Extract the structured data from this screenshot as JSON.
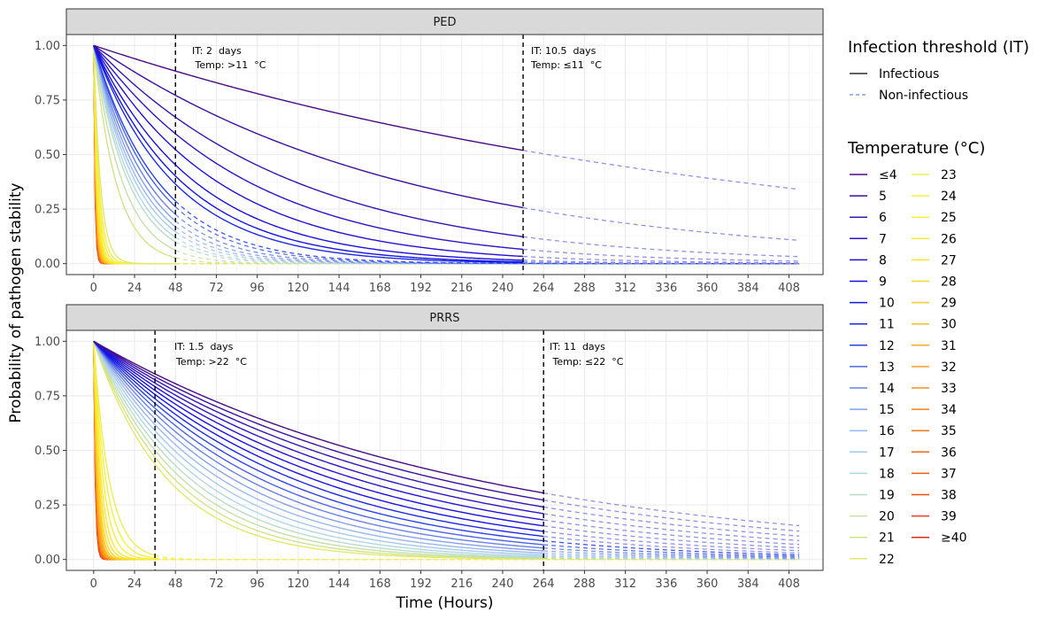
{
  "chart_data": {
    "type": "line",
    "ylabel": "Probability of pathogen stability",
    "xlabel": "Time (Hours)",
    "xlim": [
      -16,
      428
    ],
    "ylim": [
      -0.05,
      1.05
    ],
    "x_ticks": [
      0,
      24,
      48,
      72,
      96,
      120,
      144,
      168,
      192,
      216,
      240,
      264,
      288,
      312,
      336,
      360,
      384,
      408
    ],
    "y_ticks": [
      0.0,
      0.25,
      0.5,
      0.75,
      1.0
    ],
    "y_tick_labels": [
      "0.00",
      "0.25",
      "0.50",
      "0.75",
      "1.00"
    ],
    "x_max": 414,
    "grid": true,
    "panels": [
      {
        "name": "PED",
        "threshold_lines": [
          {
            "x": 48,
            "text1": "IT: 2  days",
            "text2": " Temp: >11  °C"
          },
          {
            "x": 252,
            "text1": "IT: 10.5  days",
            "text2": "Temp: ≤11  °C"
          }
        ],
        "switch": {
          "threshold_temp": 11,
          "low_x": 252,
          "high_x": 48
        },
        "value_at_switch_low": [
          {
            "temp": "≤4",
            "value": 0.52
          },
          {
            "temp": "5",
            "value": 0.26
          },
          {
            "temp": "6",
            "value": 0.13
          },
          {
            "temp": "7",
            "value": 0.07
          },
          {
            "temp": "8",
            "value": 0.04
          },
          {
            "temp": "9",
            "value": 0.03
          },
          {
            "temp": "10",
            "value": 0.02
          },
          {
            "temp": "11",
            "value": 0.01
          }
        ],
        "value_at_48h_high": [
          {
            "temp": "12",
            "value": 0.29
          },
          {
            "temp": "13",
            "value": 0.26
          },
          {
            "temp": "14",
            "value": 0.23
          },
          {
            "temp": "15",
            "value": 0.2
          },
          {
            "temp": "16",
            "value": 0.17
          },
          {
            "temp": "17",
            "value": 0.15
          },
          {
            "temp": "18",
            "value": 0.12
          },
          {
            "temp": "19",
            "value": 0.1
          },
          {
            "temp": "20",
            "value": 0.06
          },
          {
            "temp": "21",
            "value": 0.03
          },
          {
            "temp": "≥22",
            "value": 0.0
          }
        ]
      },
      {
        "name": "PRRS",
        "threshold_lines": [
          {
            "x": 36,
            "text1": "IT: 1.5  days",
            "text2": "Temp: >22  °C"
          },
          {
            "x": 264,
            "text1": "IT: 11  days",
            "text2": " Temp: ≤22  °C"
          }
        ],
        "switch": {
          "threshold_temp": 22,
          "low_x": 264,
          "high_x": 36
        },
        "value_at_switch_low": [
          {
            "temp": "≤4",
            "value": 0.31
          },
          {
            "temp": "12",
            "value": 0.06
          },
          {
            "temp": "22",
            "value": 0.0
          }
        ],
        "value_at_36h_high": [
          {
            "temp": "23",
            "value": 0.02
          },
          {
            "temp": "≥40",
            "value": 0.0
          }
        ]
      }
    ]
  },
  "legend": {
    "it_title": "Infection threshold (IT)",
    "it_items": [
      {
        "label": "Infectious",
        "dash": "solid"
      },
      {
        "label": "Non-infectious",
        "dash": "dashed"
      }
    ],
    "temp_title": "Temperature (°C)",
    "temp_items": [
      {
        "label": "≤4",
        "color": "#4b0a85"
      },
      {
        "label": "5",
        "color": "#3d0fa0"
      },
      {
        "label": "6",
        "color": "#3415b5"
      },
      {
        "label": "7",
        "color": "#2a16c8"
      },
      {
        "label": "8",
        "color": "#2112d8"
      },
      {
        "label": "9",
        "color": "#1a10e0"
      },
      {
        "label": "10",
        "color": "#1414e6"
      },
      {
        "label": "11",
        "color": "#1c2ae6"
      },
      {
        "label": "12",
        "color": "#2a44e8"
      },
      {
        "label": "13",
        "color": "#4a64e6"
      },
      {
        "label": "14",
        "color": "#6a82e6"
      },
      {
        "label": "15",
        "color": "#86a0ea"
      },
      {
        "label": "16",
        "color": "#9ab8ee"
      },
      {
        "label": "17",
        "color": "#a9c8ee"
      },
      {
        "label": "18",
        "color": "#b3d6e6"
      },
      {
        "label": "19",
        "color": "#b8dcc8"
      },
      {
        "label": "20",
        "color": "#c4e0a8"
      },
      {
        "label": "21",
        "color": "#d2e48a"
      },
      {
        "label": "22",
        "color": "#e2e86a"
      },
      {
        "label": "23",
        "color": "#eeee50"
      },
      {
        "label": "24",
        "color": "#f4f040"
      },
      {
        "label": "25",
        "color": "#f8ee38"
      },
      {
        "label": "26",
        "color": "#fbe830"
      },
      {
        "label": "27",
        "color": "#fce02a"
      },
      {
        "label": "28",
        "color": "#fdd626"
      },
      {
        "label": "29",
        "color": "#fdca22"
      },
      {
        "label": "30",
        "color": "#fdbc20"
      },
      {
        "label": "31",
        "color": "#fdae1e"
      },
      {
        "label": "32",
        "color": "#fca01c"
      },
      {
        "label": "33",
        "color": "#fb921a"
      },
      {
        "label": "34",
        "color": "#fa8418"
      },
      {
        "label": "35",
        "color": "#f87616"
      },
      {
        "label": "36",
        "color": "#f66814"
      },
      {
        "label": "37",
        "color": "#f45a12"
      },
      {
        "label": "38",
        "color": "#f24c10"
      },
      {
        "label": "39",
        "color": "#f03c10"
      },
      {
        "label": "≥40",
        "color": "#ee2a10"
      }
    ]
  }
}
